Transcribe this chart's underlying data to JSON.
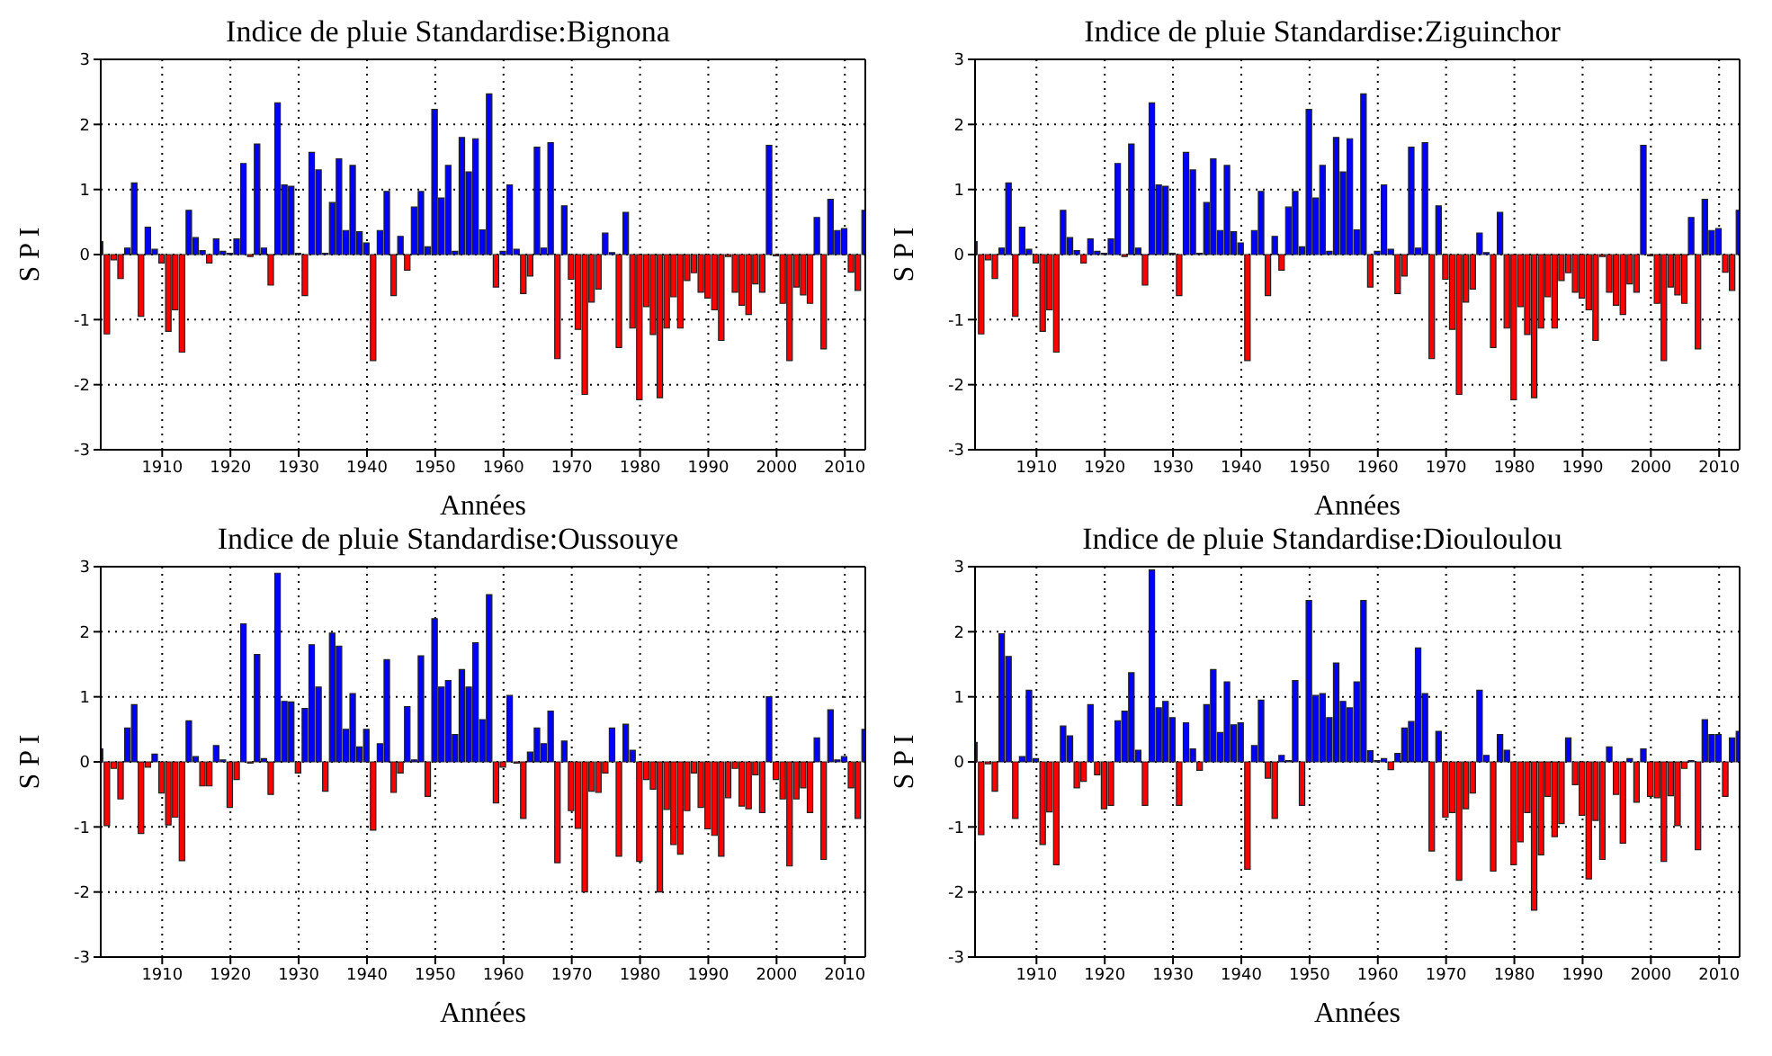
{
  "chart_data": [
    {
      "type": "bar",
      "title": "Indice de pluie Standardise:Bignona",
      "xlabel": "Années",
      "ylabel": "S P I",
      "xlim": [
        1901,
        2013
      ],
      "xticks": [
        1910,
        1920,
        1930,
        1940,
        1950,
        1960,
        1970,
        1980,
        1990,
        2000,
        2010
      ],
      "ylim": [
        -3,
        3
      ],
      "yticks": [
        -3,
        -2,
        -1,
        0,
        1,
        2,
        3
      ],
      "grid": true,
      "x": [
        1901,
        1902,
        1903,
        1904,
        1905,
        1906,
        1907,
        1908,
        1909,
        1910,
        1911,
        1912,
        1913,
        1914,
        1915,
        1916,
        1917,
        1918,
        1919,
        1920,
        1921,
        1922,
        1923,
        1924,
        1925,
        1926,
        1927,
        1928,
        1929,
        1930,
        1931,
        1932,
        1933,
        1934,
        1935,
        1936,
        1937,
        1938,
        1939,
        1940,
        1941,
        1942,
        1943,
        1944,
        1945,
        1946,
        1947,
        1948,
        1949,
        1950,
        1951,
        1952,
        1953,
        1954,
        1955,
        1956,
        1957,
        1958,
        1959,
        1960,
        1961,
        1962,
        1963,
        1964,
        1965,
        1966,
        1967,
        1968,
        1969,
        1970,
        1971,
        1972,
        1973,
        1974,
        1975,
        1976,
        1977,
        1978,
        1979,
        1980,
        1981,
        1982,
        1983,
        1984,
        1985,
        1986,
        1987,
        1988,
        1989,
        1990,
        1991,
        1992,
        1993,
        1994,
        1995,
        1996,
        1997,
        1998,
        1999,
        2000,
        2001,
        2002,
        2003,
        2004,
        2005,
        2006,
        2007,
        2008,
        2009,
        2010,
        2011,
        2012,
        2013
      ],
      "values": [
        0.2,
        -1.22,
        -0.08,
        -0.37,
        0.1,
        1.1,
        -0.95,
        0.42,
        0.08,
        -0.13,
        -1.18,
        -0.85,
        -1.5,
        0.68,
        0.26,
        0.06,
        -0.13,
        0.24,
        0.05,
        0.02,
        0.24,
        1.4,
        -0.03,
        1.7,
        0.1,
        -0.47,
        2.33,
        1.07,
        1.05,
        0.02,
        -0.63,
        1.57,
        1.3,
        0.02,
        0.8,
        1.47,
        0.37,
        1.37,
        0.35,
        0.18,
        -1.63,
        0.37,
        0.97,
        -0.63,
        0.28,
        -0.24,
        0.73,
        0.97,
        0.12,
        2.23,
        0.87,
        1.37,
        0.05,
        1.8,
        1.27,
        1.78,
        0.38,
        2.47,
        -0.5,
        0.05,
        1.07,
        0.08,
        -0.6,
        -0.33,
        1.65,
        0.1,
        1.72,
        -1.6,
        0.75,
        -0.38,
        -1.15,
        -2.15,
        -0.73,
        -0.53,
        0.33,
        0.03,
        -1.43,
        0.65,
        -1.13,
        -2.23,
        -0.8,
        -1.23,
        -2.2,
        -1.13,
        -0.65,
        -1.13,
        -0.4,
        -0.28,
        -0.58,
        -0.67,
        -0.85,
        -1.32,
        -0.03,
        -0.58,
        -0.78,
        -0.92,
        -0.45,
        -0.58,
        1.68,
        -0.02,
        -0.75,
        -1.63,
        -0.5,
        -0.62,
        -0.75,
        0.57,
        -1.45,
        0.85,
        0.37,
        0.4,
        -0.27,
        -0.55,
        0.68
      ],
      "colors": [
        "#0000ff",
        "#ff0000",
        "#ff0000",
        "#ff0000",
        "#0000ff",
        "#0000ff",
        "#ff0000",
        "#0000ff",
        "#0000ff",
        "#ff0000",
        "#ff0000",
        "#ff0000",
        "#ff0000",
        "#0000ff",
        "#0000ff",
        "#0000ff",
        "#ff0000",
        "#0000ff",
        "#0000ff",
        "#0000ff",
        "#0000ff",
        "#0000ff",
        "#ff0000",
        "#0000ff",
        "#0000ff",
        "#ff0000",
        "#0000ff",
        "#0000ff",
        "#0000ff",
        "#0000ff",
        "#ff0000",
        "#0000ff",
        "#0000ff",
        "#0000ff",
        "#0000ff",
        "#0000ff",
        "#0000ff",
        "#0000ff",
        "#0000ff",
        "#0000ff",
        "#ff0000",
        "#0000ff",
        "#0000ff",
        "#ff0000",
        "#0000ff",
        "#ff0000",
        "#0000ff",
        "#0000ff",
        "#0000ff",
        "#0000ff",
        "#0000ff",
        "#0000ff",
        "#0000ff",
        "#0000ff",
        "#0000ff",
        "#0000ff",
        "#0000ff",
        "#0000ff",
        "#ff0000",
        "#0000ff",
        "#0000ff",
        "#0000ff",
        "#ff0000",
        "#ff0000",
        "#0000ff",
        "#0000ff",
        "#0000ff",
        "#ff0000",
        "#0000ff",
        "#ff0000",
        "#ff0000",
        "#ff0000",
        "#ff0000",
        "#ff0000",
        "#0000ff",
        "#0000ff",
        "#ff0000",
        "#0000ff",
        "#ff0000",
        "#ff0000",
        "#ff0000",
        "#ff0000",
        "#ff0000",
        "#ff0000",
        "#ff0000",
        "#ff0000",
        "#ff0000",
        "#ff0000",
        "#ff0000",
        "#ff0000",
        "#ff0000",
        "#ff0000",
        "#ff0000",
        "#ff0000",
        "#ff0000",
        "#ff0000",
        "#ff0000",
        "#ff0000",
        "#0000ff",
        "#ff0000",
        "#ff0000",
        "#ff0000",
        "#ff0000",
        "#ff0000",
        "#ff0000",
        "#0000ff",
        "#ff0000",
        "#0000ff",
        "#0000ff",
        "#0000ff",
        "#ff0000",
        "#ff0000",
        "#0000ff"
      ]
    },
    {
      "type": "bar",
      "title": "Indice de pluie Standardise:Ziguinchor",
      "xlabel": "Années",
      "ylabel": "S P I",
      "xlim": [
        1901,
        2013
      ],
      "xticks": [
        1910,
        1920,
        1930,
        1940,
        1950,
        1960,
        1970,
        1980,
        1990,
        2000,
        2010
      ],
      "ylim": [
        -3,
        3
      ],
      "yticks": [
        -3,
        -2,
        -1,
        0,
        1,
        2,
        3
      ],
      "grid": true,
      "x": [
        1901,
        1902,
        1903,
        1904,
        1905,
        1906,
        1907,
        1908,
        1909,
        1910,
        1911,
        1912,
        1913,
        1914,
        1915,
        1916,
        1917,
        1918,
        1919,
        1920,
        1921,
        1922,
        1923,
        1924,
        1925,
        1926,
        1927,
        1928,
        1929,
        1930,
        1931,
        1932,
        1933,
        1934,
        1935,
        1936,
        1937,
        1938,
        1939,
        1940,
        1941,
        1942,
        1943,
        1944,
        1945,
        1946,
        1947,
        1948,
        1949,
        1950,
        1951,
        1952,
        1953,
        1954,
        1955,
        1956,
        1957,
        1958,
        1959,
        1960,
        1961,
        1962,
        1963,
        1964,
        1965,
        1966,
        1967,
        1968,
        1969,
        1970,
        1971,
        1972,
        1973,
        1974,
        1975,
        1976,
        1977,
        1978,
        1979,
        1980,
        1981,
        1982,
        1983,
        1984,
        1985,
        1986,
        1987,
        1988,
        1989,
        1990,
        1991,
        1992,
        1993,
        1994,
        1995,
        1996,
        1997,
        1998,
        1999,
        2000,
        2001,
        2002,
        2003,
        2004,
        2005,
        2006,
        2007,
        2008,
        2009,
        2010,
        2011,
        2012,
        2013
      ],
      "values": [
        0.2,
        -1.22,
        -0.08,
        -0.37,
        0.1,
        1.1,
        -0.95,
        0.42,
        0.08,
        -0.13,
        -1.18,
        -0.85,
        -1.5,
        0.68,
        0.26,
        0.06,
        -0.13,
        0.24,
        0.05,
        0.02,
        0.24,
        1.4,
        -0.03,
        1.7,
        0.1,
        -0.47,
        2.33,
        1.07,
        1.05,
        0.02,
        -0.63,
        1.57,
        1.3,
        0.02,
        0.8,
        1.47,
        0.37,
        1.37,
        0.35,
        0.18,
        -1.63,
        0.37,
        0.97,
        -0.63,
        0.28,
        -0.24,
        0.73,
        0.97,
        0.12,
        2.23,
        0.87,
        1.37,
        0.05,
        1.8,
        1.27,
        1.78,
        0.38,
        2.47,
        -0.5,
        0.05,
        1.07,
        0.08,
        -0.6,
        -0.33,
        1.65,
        0.1,
        1.72,
        -1.6,
        0.75,
        -0.38,
        -1.15,
        -2.15,
        -0.73,
        -0.53,
        0.33,
        0.03,
        -1.43,
        0.65,
        -1.13,
        -2.23,
        -0.8,
        -1.23,
        -2.2,
        -1.13,
        -0.65,
        -1.13,
        -0.4,
        -0.28,
        -0.58,
        -0.67,
        -0.85,
        -1.32,
        -0.03,
        -0.58,
        -0.78,
        -0.92,
        -0.45,
        -0.58,
        1.68,
        -0.02,
        -0.75,
        -1.63,
        -0.5,
        -0.62,
        -0.75,
        0.57,
        -1.45,
        0.85,
        0.37,
        0.4,
        -0.27,
        -0.55,
        0.68
      ],
      "colors": [
        "#0000ff",
        "#ff0000",
        "#ff0000",
        "#ff0000",
        "#0000ff",
        "#0000ff",
        "#ff0000",
        "#0000ff",
        "#0000ff",
        "#ff0000",
        "#ff0000",
        "#ff0000",
        "#ff0000",
        "#0000ff",
        "#0000ff",
        "#0000ff",
        "#ff0000",
        "#0000ff",
        "#0000ff",
        "#0000ff",
        "#0000ff",
        "#0000ff",
        "#ff0000",
        "#0000ff",
        "#0000ff",
        "#ff0000",
        "#0000ff",
        "#0000ff",
        "#0000ff",
        "#0000ff",
        "#ff0000",
        "#0000ff",
        "#0000ff",
        "#0000ff",
        "#0000ff",
        "#0000ff",
        "#0000ff",
        "#0000ff",
        "#0000ff",
        "#0000ff",
        "#ff0000",
        "#0000ff",
        "#0000ff",
        "#ff0000",
        "#0000ff",
        "#ff0000",
        "#0000ff",
        "#0000ff",
        "#0000ff",
        "#0000ff",
        "#0000ff",
        "#0000ff",
        "#0000ff",
        "#0000ff",
        "#0000ff",
        "#0000ff",
        "#0000ff",
        "#0000ff",
        "#ff0000",
        "#0000ff",
        "#0000ff",
        "#0000ff",
        "#ff0000",
        "#ff0000",
        "#0000ff",
        "#0000ff",
        "#0000ff",
        "#ff0000",
        "#0000ff",
        "#ff0000",
        "#ff0000",
        "#ff0000",
        "#ff0000",
        "#ff0000",
        "#0000ff",
        "#0000ff",
        "#ff0000",
        "#0000ff",
        "#ff0000",
        "#ff0000",
        "#ff0000",
        "#ff0000",
        "#ff0000",
        "#ff0000",
        "#ff0000",
        "#ff0000",
        "#ff0000",
        "#ff0000",
        "#ff0000",
        "#ff0000",
        "#ff0000",
        "#ff0000",
        "#ff0000",
        "#ff0000",
        "#ff0000",
        "#ff0000",
        "#ff0000",
        "#ff0000",
        "#0000ff",
        "#ff0000",
        "#ff0000",
        "#ff0000",
        "#ff0000",
        "#ff0000",
        "#ff0000",
        "#0000ff",
        "#ff0000",
        "#0000ff",
        "#0000ff",
        "#0000ff",
        "#ff0000",
        "#ff0000",
        "#0000ff"
      ]
    },
    {
      "type": "bar",
      "title": "Indice de pluie Standardise:Oussouye",
      "xlabel": "Années",
      "ylabel": "S P I",
      "xlim": [
        1901,
        2013
      ],
      "xticks": [
        1910,
        1920,
        1930,
        1940,
        1950,
        1960,
        1970,
        1980,
        1990,
        2000,
        2010
      ],
      "ylim": [
        -3,
        3
      ],
      "yticks": [
        -3,
        -2,
        -1,
        0,
        1,
        2,
        3
      ],
      "grid": true,
      "x": [
        1901,
        1902,
        1903,
        1904,
        1905,
        1906,
        1907,
        1908,
        1909,
        1910,
        1911,
        1912,
        1913,
        1914,
        1915,
        1916,
        1917,
        1918,
        1919,
        1920,
        1921,
        1922,
        1923,
        1924,
        1925,
        1926,
        1927,
        1928,
        1929,
        1930,
        1931,
        1932,
        1933,
        1934,
        1935,
        1936,
        1937,
        1938,
        1939,
        1940,
        1941,
        1942,
        1943,
        1944,
        1945,
        1946,
        1947,
        1948,
        1949,
        1950,
        1951,
        1952,
        1953,
        1954,
        1955,
        1956,
        1957,
        1958,
        1959,
        1960,
        1961,
        1962,
        1963,
        1964,
        1965,
        1966,
        1967,
        1968,
        1969,
        1970,
        1971,
        1972,
        1973,
        1974,
        1975,
        1976,
        1977,
        1978,
        1979,
        1980,
        1981,
        1982,
        1983,
        1984,
        1985,
        1986,
        1987,
        1988,
        1989,
        1990,
        1991,
        1992,
        1993,
        1994,
        1995,
        1996,
        1997,
        1998,
        1999,
        2000,
        2001,
        2002,
        2003,
        2004,
        2005,
        2006,
        2007,
        2008,
        2009,
        2010,
        2011,
        2012,
        2013
      ],
      "values": [
        0.2,
        -0.98,
        -0.1,
        -0.57,
        0.52,
        0.88,
        -1.1,
        -0.08,
        0.12,
        -0.48,
        -0.97,
        -0.85,
        -1.52,
        0.63,
        0.08,
        -0.37,
        -0.37,
        0.25,
        0.03,
        -0.7,
        -0.27,
        2.12,
        -0.02,
        1.65,
        0.05,
        -0.5,
        2.9,
        0.93,
        0.92,
        -0.17,
        0.82,
        1.8,
        1.15,
        -0.45,
        1.98,
        1.78,
        0.5,
        1.05,
        0.23,
        0.5,
        -1.05,
        0.28,
        1.57,
        -0.47,
        -0.17,
        0.85,
        0.03,
        1.63,
        -0.53,
        2.2,
        1.15,
        1.25,
        0.42,
        1.42,
        1.15,
        1.83,
        0.65,
        2.57,
        -0.63,
        -0.08,
        1.02,
        -0.02,
        -0.87,
        0.15,
        0.52,
        0.28,
        0.78,
        -1.55,
        0.32,
        -0.75,
        -1.02,
        -2.0,
        -0.45,
        -0.47,
        -0.17,
        0.52,
        -1.45,
        0.58,
        0.18,
        -1.53,
        -0.27,
        -0.42,
        -2.0,
        -0.73,
        -1.27,
        -1.42,
        -0.75,
        -0.17,
        -0.7,
        -1.03,
        -1.13,
        -1.45,
        -0.55,
        -0.1,
        -0.68,
        -0.72,
        -0.2,
        -0.78,
        1.0,
        -0.27,
        -0.57,
        -1.6,
        -0.57,
        -0.4,
        -0.78,
        0.37,
        -1.5,
        0.8,
        0.03,
        0.08,
        -0.4,
        -0.87,
        0.5
      ],
      "colors": [
        "#0000ff",
        "#ff0000",
        "#ff0000",
        "#ff0000",
        "#0000ff",
        "#0000ff",
        "#ff0000",
        "#ff0000",
        "#0000ff",
        "#ff0000",
        "#ff0000",
        "#ff0000",
        "#ff0000",
        "#0000ff",
        "#0000ff",
        "#ff0000",
        "#ff0000",
        "#0000ff",
        "#0000ff",
        "#ff0000",
        "#ff0000",
        "#0000ff",
        "#ff0000",
        "#0000ff",
        "#0000ff",
        "#ff0000",
        "#0000ff",
        "#0000ff",
        "#0000ff",
        "#ff0000",
        "#0000ff",
        "#0000ff",
        "#0000ff",
        "#ff0000",
        "#0000ff",
        "#0000ff",
        "#0000ff",
        "#0000ff",
        "#0000ff",
        "#0000ff",
        "#ff0000",
        "#0000ff",
        "#0000ff",
        "#ff0000",
        "#ff0000",
        "#0000ff",
        "#0000ff",
        "#0000ff",
        "#ff0000",
        "#0000ff",
        "#0000ff",
        "#0000ff",
        "#0000ff",
        "#0000ff",
        "#0000ff",
        "#0000ff",
        "#0000ff",
        "#0000ff",
        "#ff0000",
        "#ff0000",
        "#0000ff",
        "#ff0000",
        "#ff0000",
        "#0000ff",
        "#0000ff",
        "#0000ff",
        "#0000ff",
        "#ff0000",
        "#0000ff",
        "#ff0000",
        "#ff0000",
        "#ff0000",
        "#ff0000",
        "#ff0000",
        "#ff0000",
        "#0000ff",
        "#ff0000",
        "#0000ff",
        "#0000ff",
        "#ff0000",
        "#ff0000",
        "#ff0000",
        "#ff0000",
        "#ff0000",
        "#ff0000",
        "#ff0000",
        "#ff0000",
        "#ff0000",
        "#ff0000",
        "#ff0000",
        "#ff0000",
        "#ff0000",
        "#ff0000",
        "#ff0000",
        "#ff0000",
        "#ff0000",
        "#ff0000",
        "#ff0000",
        "#0000ff",
        "#ff0000",
        "#ff0000",
        "#ff0000",
        "#ff0000",
        "#ff0000",
        "#ff0000",
        "#0000ff",
        "#ff0000",
        "#0000ff",
        "#0000ff",
        "#0000ff",
        "#ff0000",
        "#ff0000",
        "#0000ff"
      ]
    },
    {
      "type": "bar",
      "title": "Indice de pluie Standardise:Diouloulou",
      "xlabel": "Années",
      "ylabel": "S P I",
      "xlim": [
        1901,
        2013
      ],
      "xticks": [
        1910,
        1920,
        1930,
        1940,
        1950,
        1960,
        1970,
        1980,
        1990,
        2000,
        2010
      ],
      "ylim": [
        -3,
        3
      ],
      "yticks": [
        -3,
        -2,
        -1,
        0,
        1,
        2,
        3
      ],
      "grid": true,
      "x": [
        1901,
        1902,
        1903,
        1904,
        1905,
        1906,
        1907,
        1908,
        1909,
        1910,
        1911,
        1912,
        1913,
        1914,
        1915,
        1916,
        1917,
        1918,
        1919,
        1920,
        1921,
        1922,
        1923,
        1924,
        1925,
        1926,
        1927,
        1928,
        1929,
        1930,
        1931,
        1932,
        1933,
        1934,
        1935,
        1936,
        1937,
        1938,
        1939,
        1940,
        1941,
        1942,
        1943,
        1944,
        1945,
        1946,
        1947,
        1948,
        1949,
        1950,
        1951,
        1952,
        1953,
        1954,
        1955,
        1956,
        1957,
        1958,
        1959,
        1960,
        1961,
        1962,
        1963,
        1964,
        1965,
        1966,
        1967,
        1968,
        1969,
        1970,
        1971,
        1972,
        1973,
        1974,
        1975,
        1976,
        1977,
        1978,
        1979,
        1980,
        1981,
        1982,
        1983,
        1984,
        1985,
        1986,
        1987,
        1988,
        1989,
        1990,
        1991,
        1992,
        1993,
        1994,
        1995,
        1996,
        1997,
        1998,
        1999,
        2000,
        2001,
        2002,
        2003,
        2004,
        2005,
        2006,
        2007,
        2008,
        2009,
        2010,
        2011,
        2012,
        2013
      ],
      "values": [
        0.3,
        -1.12,
        -0.03,
        -0.45,
        1.97,
        1.62,
        -0.87,
        0.08,
        1.1,
        0.05,
        -1.27,
        -0.77,
        -1.58,
        0.55,
        0.4,
        -0.4,
        -0.3,
        0.88,
        -0.2,
        -0.72,
        -0.67,
        0.63,
        0.78,
        1.37,
        0.18,
        -0.67,
        2.95,
        0.83,
        0.93,
        0.68,
        -0.67,
        0.6,
        0.2,
        -0.13,
        0.88,
        1.42,
        0.45,
        1.23,
        0.57,
        0.6,
        -1.65,
        0.25,
        0.95,
        -0.25,
        -0.87,
        0.1,
        0.02,
        1.25,
        -0.67,
        2.48,
        1.02,
        1.05,
        0.68,
        1.52,
        0.93,
        0.83,
        1.23,
        2.48,
        0.17,
        0.02,
        0.05,
        -0.12,
        0.13,
        0.52,
        0.62,
        1.75,
        1.05,
        -1.37,
        0.47,
        -0.85,
        -0.78,
        -1.82,
        -0.72,
        -0.48,
        1.1,
        0.1,
        -1.68,
        0.42,
        0.18,
        -1.58,
        -1.23,
        -0.78,
        -2.28,
        -1.43,
        -0.53,
        -1.15,
        -0.95,
        0.37,
        -0.35,
        -0.82,
        -1.8,
        -0.9,
        -1.5,
        0.23,
        -0.5,
        -1.25,
        0.05,
        -0.62,
        0.2,
        -0.53,
        -0.55,
        -1.53,
        -0.52,
        -0.98,
        -0.1,
        0.02,
        -1.35,
        0.65,
        0.42,
        0.42,
        -0.53,
        0.37,
        0.47
      ],
      "colors": [
        "#0000ff",
        "#ff0000",
        "#ff0000",
        "#ff0000",
        "#0000ff",
        "#0000ff",
        "#ff0000",
        "#0000ff",
        "#0000ff",
        "#0000ff",
        "#ff0000",
        "#ff0000",
        "#ff0000",
        "#0000ff",
        "#0000ff",
        "#ff0000",
        "#ff0000",
        "#0000ff",
        "#ff0000",
        "#ff0000",
        "#ff0000",
        "#0000ff",
        "#0000ff",
        "#0000ff",
        "#0000ff",
        "#ff0000",
        "#0000ff",
        "#0000ff",
        "#0000ff",
        "#0000ff",
        "#ff0000",
        "#0000ff",
        "#0000ff",
        "#ff0000",
        "#0000ff",
        "#0000ff",
        "#0000ff",
        "#0000ff",
        "#0000ff",
        "#0000ff",
        "#ff0000",
        "#0000ff",
        "#0000ff",
        "#ff0000",
        "#ff0000",
        "#0000ff",
        "#0000ff",
        "#0000ff",
        "#ff0000",
        "#0000ff",
        "#0000ff",
        "#0000ff",
        "#0000ff",
        "#0000ff",
        "#0000ff",
        "#0000ff",
        "#0000ff",
        "#0000ff",
        "#0000ff",
        "#0000ff",
        "#0000ff",
        "#ff0000",
        "#0000ff",
        "#0000ff",
        "#0000ff",
        "#0000ff",
        "#0000ff",
        "#ff0000",
        "#0000ff",
        "#ff0000",
        "#ff0000",
        "#ff0000",
        "#ff0000",
        "#ff0000",
        "#0000ff",
        "#0000ff",
        "#ff0000",
        "#0000ff",
        "#0000ff",
        "#ff0000",
        "#ff0000",
        "#ff0000",
        "#ff0000",
        "#ff0000",
        "#ff0000",
        "#ff0000",
        "#ff0000",
        "#0000ff",
        "#ff0000",
        "#ff0000",
        "#ff0000",
        "#ff0000",
        "#ff0000",
        "#0000ff",
        "#ff0000",
        "#ff0000",
        "#0000ff",
        "#ff0000",
        "#0000ff",
        "#ff0000",
        "#ff0000",
        "#ff0000",
        "#ff0000",
        "#ff0000",
        "#ff0000",
        "#0000ff",
        "#ff0000",
        "#0000ff",
        "#0000ff",
        "#0000ff",
        "#ff0000",
        "#0000ff",
        "#0000ff"
      ]
    }
  ]
}
